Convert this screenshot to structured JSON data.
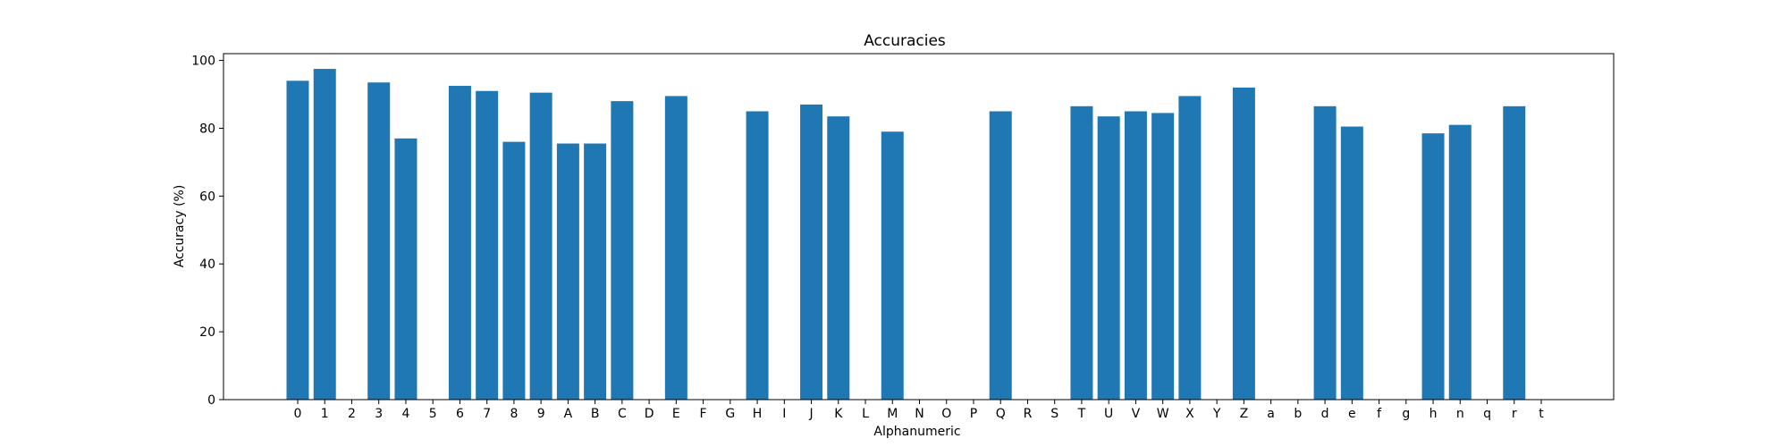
{
  "chart_data": {
    "type": "bar",
    "title": "Accuracies",
    "xlabel": "Alphanumeric",
    "ylabel": "Accuracy (%)",
    "ylim": [
      0,
      102
    ],
    "yticks": [
      0,
      20,
      40,
      60,
      80,
      100
    ],
    "grid": false,
    "bar_color": "#1f77b4",
    "categories": [
      "0",
      "1",
      "2",
      "3",
      "4",
      "5",
      "6",
      "7",
      "8",
      "9",
      "A",
      "B",
      "C",
      "D",
      "E",
      "F",
      "G",
      "H",
      "I",
      "J",
      "K",
      "L",
      "M",
      "N",
      "O",
      "P",
      "Q",
      "R",
      "S",
      "T",
      "U",
      "V",
      "W",
      "X",
      "Y",
      "Z",
      "a",
      "b",
      "d",
      "e",
      "f",
      "g",
      "h",
      "n",
      "q",
      "r",
      "t"
    ],
    "values": [
      94,
      97.5,
      0,
      93.5,
      77,
      0,
      92.5,
      91,
      76,
      90.5,
      75.5,
      75.5,
      88,
      0,
      89.5,
      0,
      0,
      85,
      0,
      87,
      83.5,
      0,
      79,
      0,
      0,
      0,
      85,
      0,
      0,
      86.5,
      83.5,
      85,
      84.5,
      89.5,
      0,
      92,
      0,
      0,
      86.5,
      80.5,
      0,
      0,
      78.5,
      81,
      0,
      86.5,
      0
    ]
  }
}
